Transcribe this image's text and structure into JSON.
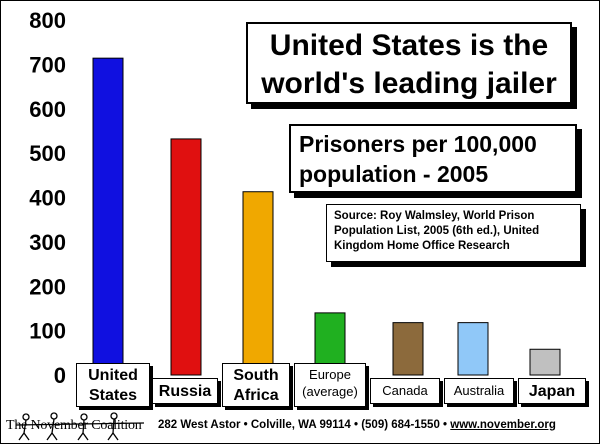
{
  "chart_data": {
    "type": "bar",
    "title": [
      "United States is the",
      "world's leading jailer"
    ],
    "subtitle": [
      "Prisoners per 100,000",
      "population - 2005"
    ],
    "source": [
      "Source: Roy Walmsley, World Prison",
      "Population List, 2005 (6th ed.), United",
      "Kingdom Home Office Research"
    ],
    "categories": [
      [
        "United",
        "States"
      ],
      [
        "Russia"
      ],
      [
        "South",
        "Africa"
      ],
      [
        "Europe",
        "(average)"
      ],
      [
        "Canada"
      ],
      [
        "Australia"
      ],
      [
        "Japan"
      ]
    ],
    "values": [
      714,
      532,
      413,
      140,
      118,
      118,
      58
    ],
    "colors": [
      "#1010e0",
      "#e01010",
      "#f0a800",
      "#20b020",
      "#8c6a3c",
      "#90c8f8",
      "#c0c0c0"
    ],
    "ylim": [
      0,
      800
    ],
    "yticks": [
      "0",
      "100",
      "200",
      "300",
      "400",
      "500",
      "600",
      "700",
      "800"
    ],
    "grid": false
  },
  "footer": {
    "org": "The November Coalition",
    "address": "282 West Astor • Colville, WA 99114 • (509) 684-1550 • ",
    "url": "www.november.org"
  }
}
